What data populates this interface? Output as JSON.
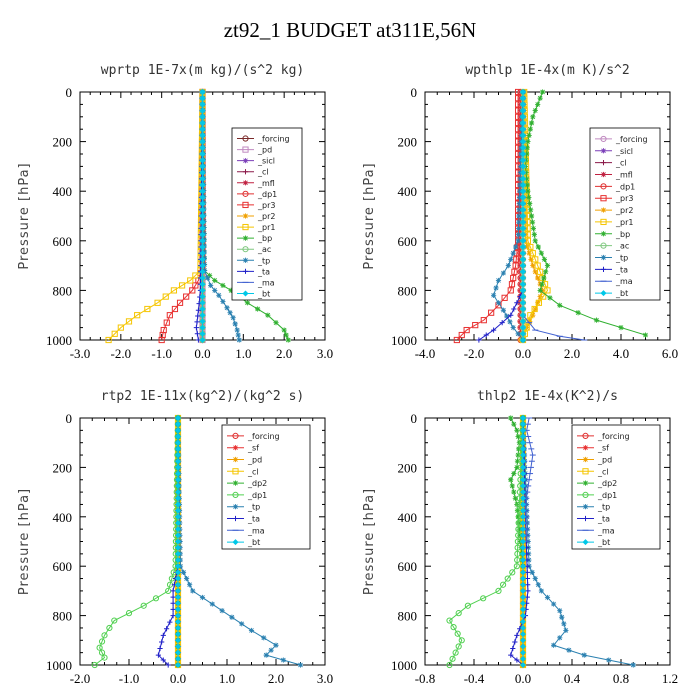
{
  "title": "zt92_1  BUDGET at311E,56N",
  "chart_data": [
    {
      "type": "line",
      "title": "wprtp  1E-7x(m kg)/(s^2 kg)",
      "ylabel": "Pressure [hPa]",
      "xlim": [
        -3.0,
        3.0
      ],
      "ylim": [
        1000,
        0
      ],
      "xticks": [
        "-3.0",
        "-2.0",
        "-1.0",
        "0.0",
        "1.0",
        "2.0",
        "3.0"
      ],
      "xtick_values": [
        -3,
        -2,
        -1,
        0,
        1,
        2,
        3
      ],
      "yticks": [
        "0",
        "200",
        "400",
        "600",
        "800",
        "1000"
      ],
      "ytick_values": [
        0,
        200,
        400,
        600,
        800,
        1000
      ],
      "series": [
        {
          "name": "_forcing",
          "color": "#7a2a2a",
          "marker": "circle",
          "x": [
            0,
            0,
            0
          ],
          "y": [
            0,
            500,
            1000
          ]
        },
        {
          "name": "_pd",
          "color": "#c08ac0",
          "marker": "square",
          "x": [
            0,
            0,
            0
          ],
          "y": [
            0,
            500,
            1000
          ]
        },
        {
          "name": "_sicl",
          "color": "#7b3fb8",
          "marker": "star",
          "x": [
            0,
            0,
            0
          ],
          "y": [
            0,
            500,
            1000
          ]
        },
        {
          "name": "_cl",
          "color": "#8b1a4a",
          "marker": "plus",
          "x": [
            0,
            0,
            0
          ],
          "y": [
            0,
            500,
            1000
          ]
        },
        {
          "name": "_mfl",
          "color": "#c02040",
          "marker": "star",
          "x": [
            0,
            0,
            0
          ],
          "y": [
            0,
            500,
            1000
          ]
        },
        {
          "name": "_dp1",
          "color": "#e03030",
          "marker": "circle",
          "x": [
            0,
            0,
            0
          ],
          "y": [
            0,
            500,
            1000
          ]
        },
        {
          "name": "_pr3",
          "color": "#e83030",
          "marker": "square",
          "x": [
            0,
            0,
            -0.1,
            -0.25,
            -0.55,
            -0.8,
            -0.95,
            -1.0
          ],
          "y": [
            0,
            700,
            760,
            800,
            850,
            900,
            960,
            1000
          ]
        },
        {
          "name": "_pr2",
          "color": "#f0a000",
          "marker": "star",
          "x": [
            0,
            0,
            0
          ],
          "y": [
            0,
            500,
            1000
          ]
        },
        {
          "name": "_pr1",
          "color": "#f5c500",
          "marker": "square",
          "x": [
            0,
            -0.05,
            -0.3,
            -0.7,
            -1.1,
            -1.6,
            -2.0,
            -2.3
          ],
          "y": [
            0,
            720,
            760,
            800,
            850,
            900,
            950,
            1000
          ]
        },
        {
          "name": "_bp",
          "color": "#30b030",
          "marker": "star",
          "x": [
            0,
            0.05,
            0.3,
            0.7,
            1.1,
            1.6,
            2.0,
            2.1
          ],
          "y": [
            0,
            720,
            760,
            800,
            850,
            900,
            960,
            1000
          ]
        },
        {
          "name": "_ac",
          "color": "#80c880",
          "marker": "circle",
          "x": [
            0,
            0,
            0
          ],
          "y": [
            0,
            500,
            1000
          ]
        },
        {
          "name": "_tp",
          "color": "#2a80b0",
          "marker": "star",
          "x": [
            0,
            0.05,
            0.2,
            0.4,
            0.6,
            0.75,
            0.85,
            0.9
          ],
          "y": [
            0,
            720,
            780,
            820,
            870,
            910,
            960,
            1000
          ]
        },
        {
          "name": "_ta",
          "color": "#2020c8",
          "marker": "plus",
          "x": [
            0,
            -0.05,
            -0.1,
            -0.15,
            -0.1
          ],
          "y": [
            0,
            800,
            880,
            950,
            1000
          ]
        },
        {
          "name": "_ma",
          "color": "#4060d0",
          "marker": "dash",
          "x": [
            0,
            0,
            0
          ],
          "y": [
            0,
            500,
            1000
          ]
        },
        {
          "name": "_bt",
          "color": "#00c8e8",
          "marker": "diamond",
          "x": [
            0,
            0,
            0
          ],
          "y": [
            0,
            500,
            1000
          ]
        }
      ]
    },
    {
      "type": "line",
      "title": "wpthlp  1E-4x(m K)/s^2",
      "ylabel": "Pressure [hPa]",
      "xlim": [
        -4.0,
        6.0
      ],
      "ylim": [
        1000,
        0
      ],
      "xticks": [
        "-4.0",
        "-2.0",
        "0.0",
        "2.0",
        "4.0",
        "6.0"
      ],
      "xtick_values": [
        -4,
        -2,
        0,
        2,
        4,
        6
      ],
      "yticks": [
        "0",
        "200",
        "400",
        "600",
        "800",
        "1000"
      ],
      "ytick_values": [
        0,
        200,
        400,
        600,
        800,
        1000
      ],
      "series": [
        {
          "name": "_forcing",
          "color": "#c08ac0",
          "marker": "circle",
          "x": [
            0,
            0,
            0
          ],
          "y": [
            0,
            500,
            1000
          ]
        },
        {
          "name": "_sicl",
          "color": "#7b3fb8",
          "marker": "star",
          "x": [
            0,
            0,
            0
          ],
          "y": [
            0,
            500,
            1000
          ]
        },
        {
          "name": "_cl",
          "color": "#8b1a4a",
          "marker": "plus",
          "x": [
            0,
            0,
            0
          ],
          "y": [
            0,
            500,
            1000
          ]
        },
        {
          "name": "_mfl",
          "color": "#c02040",
          "marker": "star",
          "x": [
            -0.1,
            -0.1,
            -0.1
          ],
          "y": [
            0,
            500,
            1000
          ]
        },
        {
          "name": "_dp1",
          "color": "#e03030",
          "marker": "circle",
          "x": [
            -0.1,
            -0.1,
            -0.1
          ],
          "y": [
            0,
            500,
            1000
          ]
        },
        {
          "name": "_pr3",
          "color": "#e83030",
          "marker": "square",
          "x": [
            -0.2,
            -0.2,
            -0.3,
            -0.5,
            -1.0,
            -1.6,
            -2.3,
            -2.7
          ],
          "y": [
            0,
            600,
            700,
            800,
            860,
            920,
            960,
            1000
          ]
        },
        {
          "name": "_pr2",
          "color": "#f0a000",
          "marker": "star",
          "x": [
            0.05,
            0.1,
            0.4,
            0.8,
            0.4,
            -0.1
          ],
          "y": [
            0,
            600,
            700,
            800,
            900,
            1000
          ]
        },
        {
          "name": "_pr1",
          "color": "#f5c500",
          "marker": "square",
          "x": [
            0.05,
            0.2,
            0.6,
            1.0,
            0.3,
            0
          ],
          "y": [
            0,
            600,
            700,
            800,
            900,
            1000
          ]
        },
        {
          "name": "_bp",
          "color": "#30b030",
          "marker": "star",
          "x": [
            0.8,
            0.6,
            0.4,
            0.2,
            0.1,
            0.2,
            0.5,
            1.0,
            0.7,
            1.5,
            3.0,
            5.0
          ],
          "y": [
            0,
            50,
            100,
            200,
            300,
            400,
            600,
            700,
            800,
            860,
            920,
            980
          ]
        },
        {
          "name": "_ac",
          "color": "#80c880",
          "marker": "circle",
          "x": [
            0,
            0,
            0
          ],
          "y": [
            0,
            500,
            1000
          ]
        },
        {
          "name": "_tp",
          "color": "#2a80b0",
          "marker": "star",
          "x": [
            0,
            -0.2,
            -0.6,
            -1.0,
            -1.2,
            -0.8,
            -0.4,
            0
          ],
          "y": [
            0,
            600,
            700,
            760,
            820,
            880,
            950,
            1000
          ]
        },
        {
          "name": "_ta",
          "color": "#2020c8",
          "marker": "plus",
          "x": [
            0,
            0,
            -0.5,
            -1.2,
            -1.8
          ],
          "y": [
            0,
            800,
            900,
            960,
            1000
          ]
        },
        {
          "name": "_ma",
          "color": "#4060d0",
          "marker": "dash",
          "x": [
            0,
            0,
            0.5,
            1.5,
            2.5
          ],
          "y": [
            0,
            900,
            960,
            985,
            1000
          ]
        },
        {
          "name": "_bt",
          "color": "#00c8e8",
          "marker": "diamond",
          "x": [
            0,
            0,
            0
          ],
          "y": [
            0,
            500,
            1000
          ]
        }
      ]
    },
    {
      "type": "line",
      "title": "rtp2  1E-11x(kg^2)/(kg^2 s)",
      "ylabel": "Pressure [hPa]",
      "xlim": [
        -2.0,
        3.0
      ],
      "ylim": [
        1000,
        0
      ],
      "xticks": [
        "-2.0",
        "-1.0",
        "0.0",
        "1.0",
        "2.0",
        "3.0"
      ],
      "xtick_values": [
        -2,
        -1,
        0,
        1,
        2,
        3
      ],
      "yticks": [
        "0",
        "200",
        "400",
        "600",
        "800",
        "1000"
      ],
      "ytick_values": [
        0,
        200,
        400,
        600,
        800,
        1000
      ],
      "series": [
        {
          "name": "_forcing",
          "color": "#e03030",
          "marker": "circle",
          "x": [
            0,
            0,
            0
          ],
          "y": [
            0,
            500,
            1000
          ]
        },
        {
          "name": "_sf",
          "color": "#e83030",
          "marker": "star",
          "x": [
            0,
            0,
            0
          ],
          "y": [
            0,
            500,
            1000
          ]
        },
        {
          "name": "_pd",
          "color": "#f0a000",
          "marker": "star",
          "x": [
            0,
            0,
            0
          ],
          "y": [
            0,
            500,
            1000
          ]
        },
        {
          "name": "_cl",
          "color": "#f5c500",
          "marker": "square",
          "x": [
            0,
            0,
            0
          ],
          "y": [
            0,
            500,
            1000
          ]
        },
        {
          "name": "_dp2",
          "color": "#30b030",
          "marker": "star",
          "x": [
            0,
            0,
            0
          ],
          "y": [
            0,
            500,
            1000
          ]
        },
        {
          "name": "_dp1",
          "color": "#50d050",
          "marker": "circle",
          "x": [
            0,
            -0.05,
            -0.2,
            -0.7,
            -1.3,
            -1.5,
            -1.6,
            -1.5,
            -1.7
          ],
          "y": [
            0,
            600,
            700,
            760,
            820,
            880,
            930,
            970,
            1000
          ]
        },
        {
          "name": "_tp",
          "color": "#2a80b0",
          "marker": "star",
          "x": [
            0,
            0.05,
            0.3,
            0.9,
            1.5,
            2.0,
            1.8,
            2.5
          ],
          "y": [
            0,
            600,
            700,
            780,
            860,
            920,
            960,
            1000
          ]
        },
        {
          "name": "_ta",
          "color": "#2020c8",
          "marker": "plus",
          "x": [
            0,
            0,
            -0.1,
            -0.1,
            -0.3,
            -0.4,
            -0.2
          ],
          "y": [
            0,
            600,
            700,
            800,
            880,
            960,
            1000
          ]
        },
        {
          "name": "_ma",
          "color": "#4060d0",
          "marker": "dash",
          "x": [
            0,
            0,
            0
          ],
          "y": [
            0,
            500,
            1000
          ]
        },
        {
          "name": "_bt",
          "color": "#00c8e8",
          "marker": "diamond",
          "x": [
            0,
            0,
            0
          ],
          "y": [
            0,
            500,
            1000
          ]
        }
      ]
    },
    {
      "type": "line",
      "title": "thlp2  1E-4x(K^2)/s",
      "ylabel": "Pressure [hPa]",
      "xlim": [
        -0.8,
        1.2
      ],
      "ylim": [
        1000,
        0
      ],
      "xticks": [
        "-0.8",
        "-0.4",
        "0.0",
        "0.4",
        "0.8",
        "1.2"
      ],
      "xtick_values": [
        -0.8,
        -0.4,
        0,
        0.4,
        0.8,
        1.2
      ],
      "yticks": [
        "0",
        "200",
        "400",
        "600",
        "800",
        "1000"
      ],
      "ytick_values": [
        0,
        200,
        400,
        600,
        800,
        1000
      ],
      "series": [
        {
          "name": "_forcing",
          "color": "#e03030",
          "marker": "circle",
          "x": [
            0,
            0,
            0
          ],
          "y": [
            0,
            500,
            1000
          ]
        },
        {
          "name": "_sf",
          "color": "#e83030",
          "marker": "star",
          "x": [
            0,
            0,
            0
          ],
          "y": [
            0,
            500,
            1000
          ]
        },
        {
          "name": "_pd",
          "color": "#f0a000",
          "marker": "star",
          "x": [
            0,
            0,
            0
          ],
          "y": [
            0,
            500,
            1000
          ]
        },
        {
          "name": "_cl",
          "color": "#f5c500",
          "marker": "square",
          "x": [
            0,
            0,
            0
          ],
          "y": [
            0,
            500,
            1000
          ]
        },
        {
          "name": "_dp2",
          "color": "#30b030",
          "marker": "star",
          "x": [
            -0.1,
            -0.05,
            -0.03,
            -0.05,
            -0.1,
            -0.05,
            0
          ],
          "y": [
            0,
            50,
            100,
            200,
            250,
            350,
            600
          ]
        },
        {
          "name": "_dp1",
          "color": "#50d050",
          "marker": "circle",
          "x": [
            0,
            -0.05,
            -0.2,
            -0.45,
            -0.6,
            -0.5,
            -0.6
          ],
          "y": [
            0,
            600,
            700,
            760,
            820,
            900,
            1000
          ]
        },
        {
          "name": "_tp",
          "color": "#2a80b0",
          "marker": "star",
          "x": [
            0,
            0.05,
            0.15,
            0.3,
            0.35,
            0.25,
            0.5,
            0.9
          ],
          "y": [
            0,
            600,
            700,
            780,
            860,
            920,
            960,
            1000
          ]
        },
        {
          "name": "_ta",
          "color": "#2020c8",
          "marker": "plus",
          "x": [
            0,
            0.02,
            0.04,
            0.02,
            -0.05,
            -0.1,
            0
          ],
          "y": [
            0,
            400,
            700,
            800,
            880,
            960,
            1000
          ]
        },
        {
          "name": "_ma",
          "color": "#4060d0",
          "marker": "dash",
          "x": [
            0.05,
            0.03,
            0.08,
            0.05,
            0.02,
            0.03
          ],
          "y": [
            0,
            50,
            150,
            250,
            350,
            500
          ]
        },
        {
          "name": "_bt",
          "color": "#00c8e8",
          "marker": "diamond",
          "x": [
            0,
            0,
            0
          ],
          "y": [
            0,
            500,
            1000
          ]
        }
      ]
    }
  ]
}
